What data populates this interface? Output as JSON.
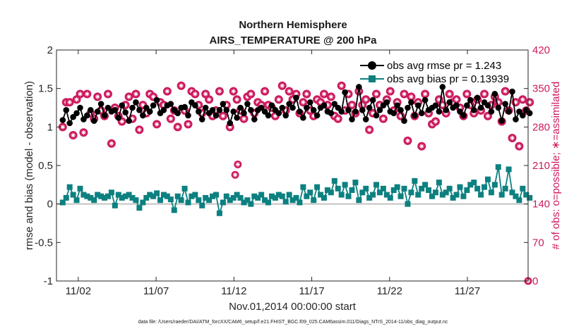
{
  "chart_data": {
    "type": "line",
    "title": "Northern Hemisphere",
    "subtitle": "AIRS_TEMPERATURE @ 200 hPa",
    "xlabel": "Nov.01,2014 00:00:00 start",
    "ylabel": "rmse and bias (model - observation)",
    "y2label": "# of obs: o=possible; ∗=assimilated",
    "footnote": "data file: /Users/raeder/DAI/ATM_forcXX/CAM6_setup/f.e21.FHIST_BGC.f09_025.CAM6assim.011/Diags_NTrS_2014-11/obs_diag_output.nc",
    "xlim": [
      0.6,
      30.9
    ],
    "ylim": [
      -1,
      2
    ],
    "y2lim": [
      0,
      420
    ],
    "x_ticks": [
      2,
      7,
      12,
      17,
      22,
      27
    ],
    "x_tick_labels": [
      "11/02",
      "11/07",
      "11/12",
      "11/17",
      "11/22",
      "11/27"
    ],
    "y_ticks": [
      -1,
      -0.5,
      0,
      0.5,
      1,
      1.5,
      2
    ],
    "y_tick_labels": [
      "-1",
      "-0.5",
      "0",
      "0.5",
      "1",
      "1.5",
      "2"
    ],
    "y2_ticks": [
      0,
      70,
      140,
      210,
      280,
      350,
      420
    ],
    "y2_tick_labels": [
      "0",
      "70",
      "140",
      "210",
      "280",
      "350",
      "420"
    ],
    "zero_line": true,
    "grid": false,
    "legend_position": "top-right",
    "colors": {
      "rmse": "#000000",
      "bias": "#0d8080",
      "obs": "#cc1a5e",
      "zero_line": "#b3b3b3",
      "axes": "#262626"
    },
    "series": [
      {
        "name": "obs avg rmse pr = 1.243",
        "axis": "left",
        "marker": "circle",
        "values": [
          1.09,
          1.22,
          1.05,
          1.13,
          1.18,
          1.25,
          1.1,
          1.15,
          1.22,
          1.08,
          1.2,
          1.3,
          1.15,
          1.25,
          1.2,
          1.22,
          1.12,
          1.28,
          1.19,
          1.08,
          1.25,
          1.32,
          1.22,
          1.15,
          1.25,
          1.2,
          1.28,
          1.35,
          1.18,
          1.22,
          1.28,
          1.3,
          1.22,
          1.18,
          1.25,
          1.26,
          1.15,
          1.32,
          1.28,
          1.2,
          1.1,
          1.25,
          1.18,
          1.22,
          1.15,
          1.22,
          1.3,
          1.22,
          1.05,
          1.2,
          1.12,
          1.25,
          1.18,
          1.3,
          1.22,
          1.1,
          1.22,
          1.25,
          1.2,
          1.15,
          1.28,
          1.22,
          1.18,
          1.25,
          1.15,
          1.3,
          1.25,
          1.38,
          1.2,
          1.12,
          1.25,
          1.32,
          1.22,
          1.15,
          1.25,
          1.28,
          1.2,
          1.18,
          1.3,
          1.25,
          1.2,
          1.45,
          1.22,
          1.1,
          1.2,
          1.52,
          1.22,
          1.1,
          1.25,
          1.35,
          1.15,
          1.22,
          1.28,
          1.32,
          1.2,
          1.18,
          1.28,
          1.22,
          1.08,
          1.25,
          1.32,
          1.15,
          1.28,
          1.18,
          1.35,
          1.22,
          1.25,
          1.28,
          1.2,
          1.52,
          1.22,
          1.32,
          1.25,
          1.28,
          1.2,
          1.15,
          1.28,
          1.35,
          1.22,
          1.38,
          1.25,
          1.32,
          1.28,
          1.2,
          1.43,
          1.25,
          1.08,
          1.3,
          1.2,
          1.46,
          1.1,
          1.2,
          1.15,
          1.22,
          1.18
        ]
      },
      {
        "name": "obs avg bias pr = 0.13939",
        "axis": "left",
        "marker": "square",
        "values": [
          0.02,
          0.08,
          0.22,
          0.12,
          0.05,
          0.2,
          0.12,
          0.1,
          0.08,
          0.05,
          0.12,
          0.1,
          0.08,
          0.1,
          0.15,
          -0.02,
          0.12,
          0.08,
          0.1,
          0.12,
          0.08,
          0.05,
          -0.05,
          0.02,
          0.08,
          0.12,
          0.1,
          0.14,
          0.05,
          0.12,
          0.1,
          0.06,
          -0.08,
          0.1,
          0.05,
          0.2,
          0.02,
          0.1,
          0.12,
          0.05,
          -0.02,
          0.08,
          0.05,
          0.1,
          0.12,
          -0.12,
          0.02,
          0.1,
          0.05,
          0.08,
          0.12,
          0.08,
          0.02,
          0.05,
          0.0,
          0.1,
          0.08,
          0.12,
          0.05,
          0.02,
          0.1,
          0.08,
          0.12,
          0.1,
          0.03,
          0.12,
          0.05,
          0.08,
          0.02,
          0.22,
          0.1,
          0.15,
          0.05,
          0.22,
          0.12,
          0.08,
          0.18,
          0.15,
          0.3,
          0.2,
          0.12,
          0.25,
          0.1,
          0.18,
          0.28,
          0.05,
          0.15,
          0.2,
          0.08,
          0.12,
          0.25,
          0.15,
          0.2,
          0.12,
          0.08,
          0.18,
          0.22,
          0.1,
          0.2,
          0.0,
          0.15,
          0.3,
          0.12,
          0.2,
          0.25,
          0.18,
          0.1,
          0.15,
          0.28,
          0.12,
          0.15,
          0.2,
          0.08,
          0.12,
          0.22,
          0.1,
          0.18,
          0.25,
          0.28,
          0.2,
          0.12,
          0.22,
          0.32,
          0.15,
          0.25,
          0.48,
          0.12,
          0.2,
          0.45,
          0.15,
          0.1,
          0.05,
          0.2,
          0.12,
          0.08
        ]
      },
      {
        "name": "obs possible",
        "axis": "right",
        "marker": "circled-asterisk",
        "values": [
          280,
          325,
          325,
          265,
          330,
          340,
          270,
          340,
          305,
          295,
          335,
          310,
          300,
          340,
          250,
          315,
          300,
          290,
          320,
          335,
          295,
          340,
          275,
          320,
          305,
          340,
          335,
          285,
          325,
          320,
          345,
          295,
          310,
          280,
          355,
          310,
          285,
          345,
          340,
          320,
          305,
          340,
          330,
          300,
          310,
          345,
          300,
          320,
          280,
          345,
          330,
          310,
          295,
          335,
          340,
          305,
          325,
          320,
          345,
          320,
          315,
          300,
          330,
          355,
          310,
          345,
          330,
          340,
          305,
          325,
          340,
          310,
          300,
          330,
          325,
          340,
          320,
          335,
          300,
          295,
          355,
          310,
          340,
          320,
          305,
          345,
          320,
          330,
          275,
          305,
          340,
          320,
          295,
          330,
          345,
          310,
          325,
          300,
          340,
          255,
          335,
          300,
          325,
          245,
          340,
          305,
          285,
          290,
          330,
          320,
          305,
          340,
          325,
          330,
          315,
          300,
          340,
          320,
          305,
          330,
          310,
          340,
          300,
          320,
          335,
          325,
          290,
          345,
          310,
          260,
          325,
          245,
          330,
          310,
          325
        ]
      },
      {
        "name": "obs assimilated",
        "axis": "right",
        "marker": "asterisk",
        "values": [
          278,
          322,
          320,
          262,
          328,
          337,
          268,
          338,
          302,
          292,
          332,
          307,
          297,
          337,
          247,
          312,
          297,
          287,
          317,
          332,
          292,
          337,
          272,
          317,
          302,
          337,
          332,
          282,
          322,
          317,
          342,
          292,
          307,
          277,
          352,
          307,
          282,
          342,
          337,
          317,
          302,
          337,
          327,
          297,
          307,
          342,
          297,
          317,
          277,
          342,
          327,
          307,
          292,
          332,
          337,
          302,
          322,
          317,
          342,
          317,
          312,
          297,
          327,
          352,
          307,
          342,
          327,
          337,
          302,
          322,
          337,
          307,
          297,
          327,
          322,
          337,
          317,
          332,
          297,
          292,
          352,
          307,
          337,
          317,
          302,
          342,
          317,
          327,
          272,
          302,
          337,
          317,
          292,
          327,
          342,
          307,
          322,
          297,
          337,
          252,
          332,
          297,
          322,
          242,
          337,
          302,
          282,
          287,
          327,
          317,
          302,
          337,
          322,
          327,
          312,
          297,
          337,
          317,
          302,
          327,
          307,
          337,
          297,
          317,
          332,
          322,
          287,
          342,
          307,
          257,
          322,
          242,
          327,
          307,
          322
        ]
      }
    ],
    "outliers": [
      {
        "x": 12.08,
        "y2": 193,
        "marker": "circled-asterisk"
      },
      {
        "x": 12.25,
        "y2": 212,
        "marker": "circled-asterisk"
      },
      {
        "x": 30.9,
        "y2": 0,
        "marker": "circled-asterisk"
      }
    ]
  }
}
